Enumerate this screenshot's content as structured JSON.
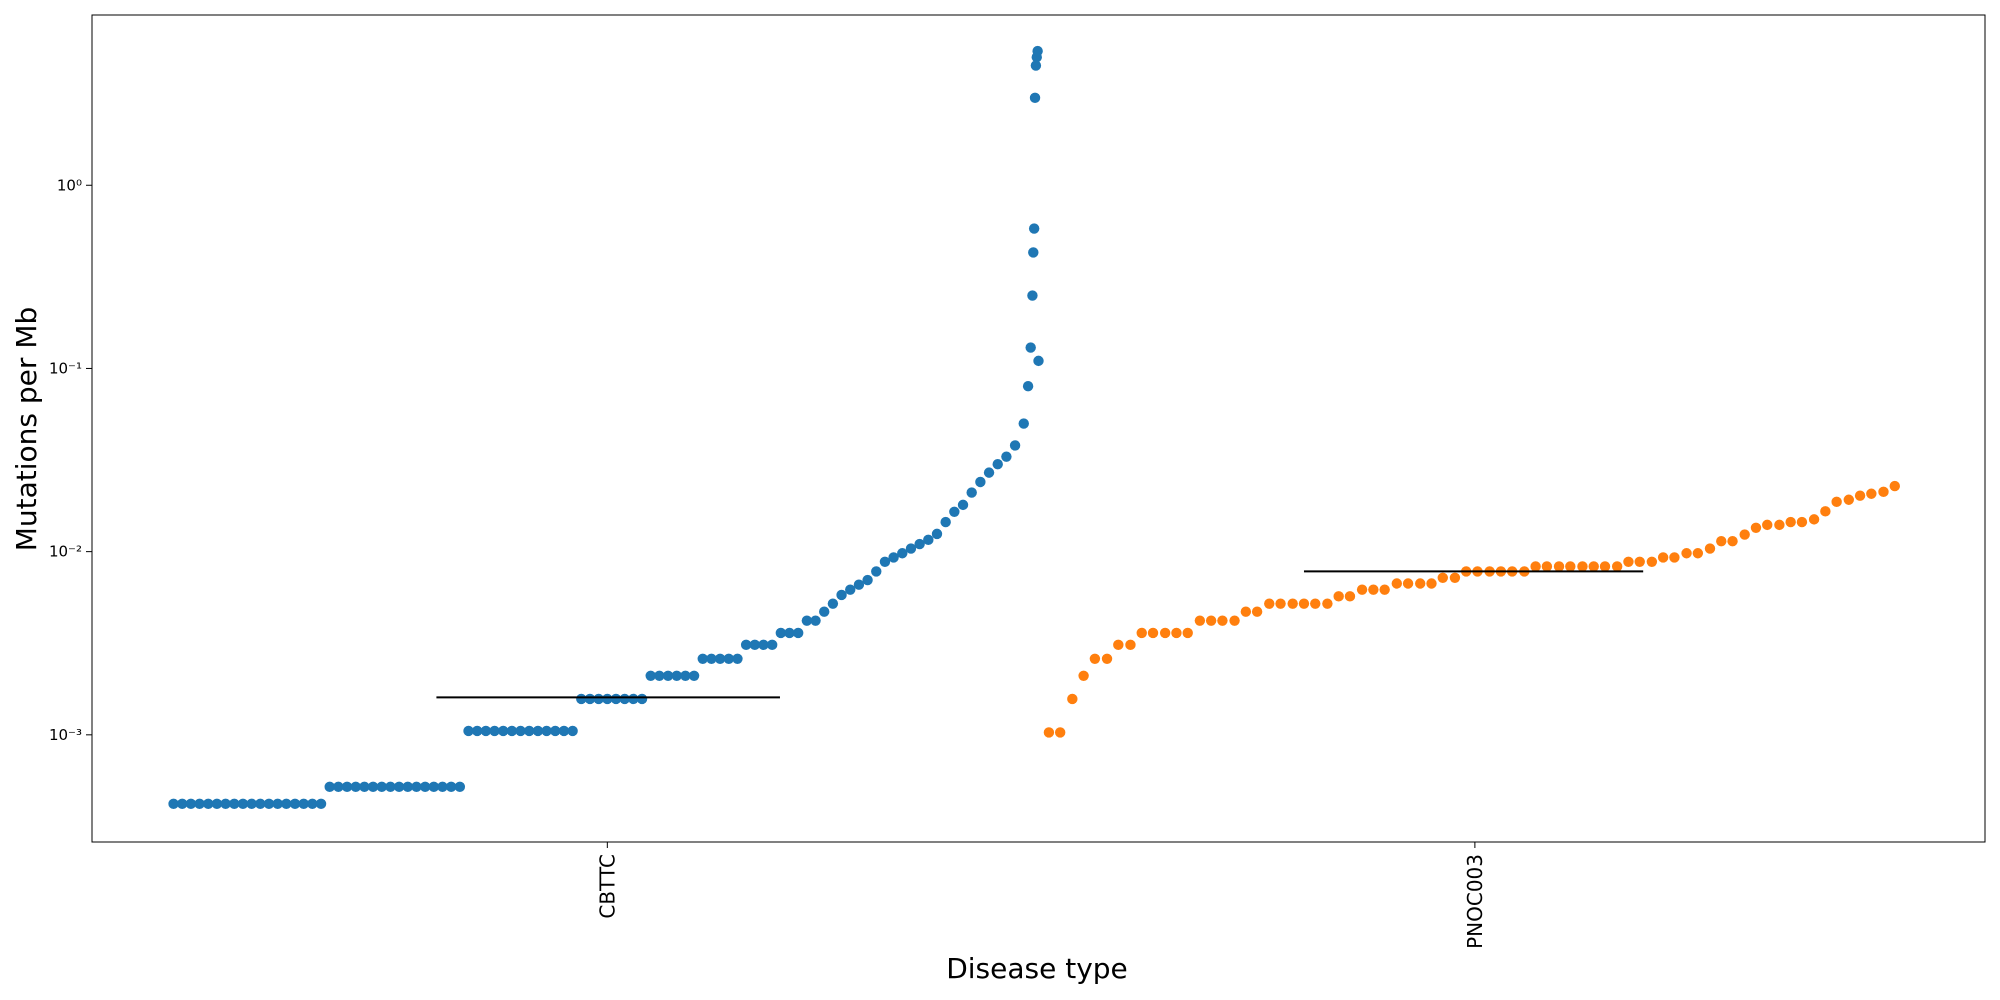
{
  "chart_data": {
    "type": "scatter",
    "x_label": "Disease type",
    "y_label": "Mutations per Mb",
    "y_log": true,
    "xlim": [
      -0.594,
      1.588
    ],
    "ylim": [
      0.00026,
      8.5
    ],
    "xticks": [
      {
        "value": 0,
        "label": "CBTTC"
      },
      {
        "value": 1,
        "label": "PNOC003"
      }
    ],
    "yticks": [
      {
        "value": 0.001,
        "label": "10⁻³"
      },
      {
        "value": 0.01,
        "label": "10⁻²"
      },
      {
        "value": 0.1,
        "label": "10⁻¹"
      },
      {
        "value": 1,
        "label": "10⁰"
      }
    ],
    "series": [
      {
        "color": "#1f77b4",
        "x": [
          -0.5,
          -0.49,
          -0.48,
          -0.47,
          -0.46,
          -0.45,
          -0.44,
          -0.43,
          -0.42,
          -0.41,
          -0.4,
          -0.39,
          -0.38,
          -0.37,
          -0.36,
          -0.35,
          -0.34,
          -0.33,
          -0.32,
          -0.31,
          -0.3,
          -0.29,
          -0.28,
          -0.27,
          -0.26,
          -0.25,
          -0.24,
          -0.23,
          -0.22,
          -0.21,
          -0.2,
          -0.19,
          -0.18,
          -0.17,
          -0.16,
          -0.15,
          -0.14,
          -0.13,
          -0.12,
          -0.11,
          -0.1,
          -0.09,
          -0.08,
          -0.07,
          -0.06,
          -0.05,
          -0.04,
          -0.03,
          -0.02,
          -0.01,
          0.0,
          0.01,
          0.02,
          0.03,
          0.04,
          0.05,
          0.06,
          0.07,
          0.08,
          0.09,
          0.1,
          0.11,
          0.12,
          0.13,
          0.14,
          0.15,
          0.16,
          0.17,
          0.18,
          0.19,
          0.2,
          0.21,
          0.22,
          0.23,
          0.24,
          0.25,
          0.26,
          0.27,
          0.28,
          0.29,
          0.3,
          0.31,
          0.32,
          0.33,
          0.34,
          0.35,
          0.36,
          0.37,
          0.38,
          0.39,
          0.4,
          0.41,
          0.42,
          0.43,
          0.44,
          0.45,
          0.46,
          0.47,
          0.48,
          0.485,
          0.488,
          0.49,
          0.491,
          0.492,
          0.493,
          0.494,
          0.495,
          0.496,
          0.497
        ],
        "values": [
          0.00042,
          0.00042,
          0.00042,
          0.00042,
          0.00042,
          0.00042,
          0.00042,
          0.00042,
          0.00042,
          0.00042,
          0.00042,
          0.00042,
          0.00042,
          0.00042,
          0.00042,
          0.00042,
          0.00042,
          0.00042,
          0.00052,
          0.00052,
          0.00052,
          0.00052,
          0.00052,
          0.00052,
          0.00052,
          0.00052,
          0.00052,
          0.00052,
          0.00052,
          0.00052,
          0.00052,
          0.00052,
          0.00052,
          0.00052,
          0.00105,
          0.00105,
          0.00105,
          0.00105,
          0.00105,
          0.00105,
          0.00105,
          0.00105,
          0.00105,
          0.00105,
          0.00105,
          0.00105,
          0.00105,
          0.00157,
          0.00157,
          0.00157,
          0.00157,
          0.00157,
          0.00157,
          0.00157,
          0.00157,
          0.0021,
          0.0021,
          0.0021,
          0.0021,
          0.0021,
          0.0021,
          0.0026,
          0.0026,
          0.0026,
          0.0026,
          0.0026,
          0.0031,
          0.0031,
          0.0031,
          0.0031,
          0.0036,
          0.0036,
          0.0036,
          0.0042,
          0.0042,
          0.0047,
          0.0052,
          0.0058,
          0.0062,
          0.0066,
          0.007,
          0.0078,
          0.0088,
          0.0093,
          0.0098,
          0.0104,
          0.011,
          0.0116,
          0.0125,
          0.0145,
          0.0165,
          0.018,
          0.021,
          0.024,
          0.027,
          0.03,
          0.033,
          0.038,
          0.05,
          0.08,
          0.13,
          0.25,
          0.43,
          0.58,
          3.0,
          4.5,
          5.0,
          5.4,
          0.11
        ]
      },
      {
        "color": "#ff7f0e",
        "x": [
          0.509,
          0.522,
          0.536,
          0.549,
          0.562,
          0.576,
          0.589,
          0.603,
          0.616,
          0.629,
          0.643,
          0.656,
          0.669,
          0.683,
          0.696,
          0.709,
          0.723,
          0.736,
          0.749,
          0.763,
          0.776,
          0.79,
          0.803,
          0.816,
          0.83,
          0.843,
          0.856,
          0.87,
          0.883,
          0.896,
          0.91,
          0.923,
          0.937,
          0.95,
          0.963,
          0.977,
          0.99,
          1.003,
          1.017,
          1.03,
          1.043,
          1.057,
          1.07,
          1.083,
          1.097,
          1.11,
          1.124,
          1.137,
          1.15,
          1.164,
          1.177,
          1.19,
          1.204,
          1.217,
          1.23,
          1.244,
          1.257,
          1.271,
          1.284,
          1.297,
          1.311,
          1.324,
          1.337,
          1.351,
          1.364,
          1.377,
          1.391,
          1.404,
          1.417,
          1.431,
          1.444,
          1.457,
          1.471,
          1.484
        ],
        "values": [
          0.00103,
          0.00103,
          0.00157,
          0.0021,
          0.0026,
          0.0026,
          0.0031,
          0.0031,
          0.0036,
          0.0036,
          0.0036,
          0.0036,
          0.0036,
          0.0042,
          0.0042,
          0.0042,
          0.0042,
          0.0047,
          0.0047,
          0.0052,
          0.0052,
          0.0052,
          0.0052,
          0.0052,
          0.0052,
          0.0057,
          0.0057,
          0.0062,
          0.0062,
          0.0062,
          0.0067,
          0.0067,
          0.0067,
          0.0067,
          0.0072,
          0.0072,
          0.0078,
          0.0078,
          0.0078,
          0.0078,
          0.0078,
          0.0078,
          0.0083,
          0.0083,
          0.0083,
          0.0083,
          0.0083,
          0.0083,
          0.0083,
          0.0083,
          0.0088,
          0.0088,
          0.0088,
          0.0093,
          0.0093,
          0.0098,
          0.0098,
          0.0104,
          0.0114,
          0.0114,
          0.0124,
          0.0135,
          0.014,
          0.014,
          0.0145,
          0.0145,
          0.015,
          0.0166,
          0.0187,
          0.0192,
          0.0202,
          0.0207,
          0.0212,
          0.0228
        ]
      }
    ],
    "median_lines": [
      {
        "xrange": [
          -0.197,
          0.199
        ],
        "value": 0.0016
      },
      {
        "xrange": [
          0.803,
          1.194
        ],
        "value": 0.0078
      }
    ]
  }
}
